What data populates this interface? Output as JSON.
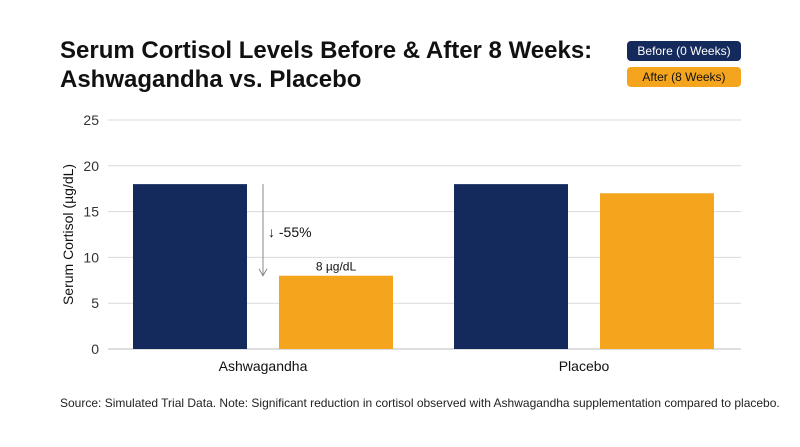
{
  "title_line1": "Serum Cortisol Levels Before & After 8 Weeks:",
  "title_line2": "Ashwagandha vs. Placebo",
  "source": "Source: Simulated Trial Data. Note: Significant reduction in cortisol observed with Ashwagandha supplementation compared to placebo.",
  "colors": {
    "before": "#152a5c",
    "after": "#f4a51d",
    "grid": "#d9d9d9",
    "arrow": "#888888"
  },
  "chart_data": {
    "type": "bar",
    "categories": [
      "Ashwagandha",
      "Placebo"
    ],
    "series": [
      {
        "name": "Before (0 Weeks)",
        "values": [
          18,
          18
        ]
      },
      {
        "name": "After (8 Weeks)",
        "values": [
          8,
          17
        ]
      }
    ],
    "ylabel": "Serum Cortisol (µg/dL)",
    "ylim": [
      0,
      25
    ],
    "yticks": [
      0,
      5,
      10,
      15,
      20,
      25
    ],
    "grid": true,
    "legend_position": "top-right",
    "annotations": {
      "reduction": "↓ -55%",
      "after_value_label": "8 µg/dL"
    }
  }
}
